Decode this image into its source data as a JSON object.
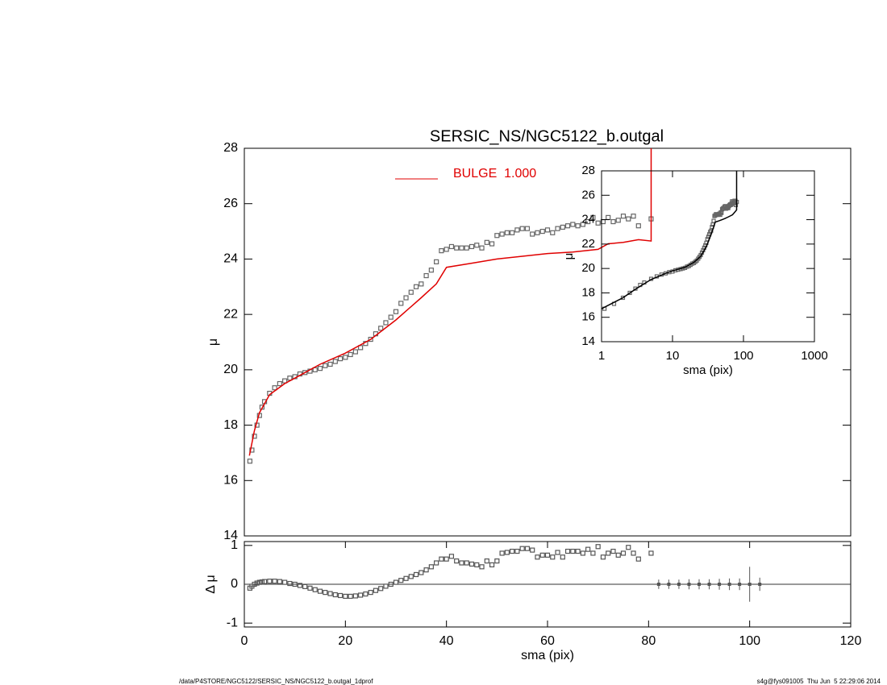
{
  "chart_data": [
    {
      "type": "scatter",
      "title": "SERSIC_NS/NGC5122_b.outgal",
      "ylabel": "μ",
      "xlim": [
        0,
        120
      ],
      "ylim": [
        14,
        28
      ],
      "yticks": [
        14,
        16,
        18,
        20,
        22,
        24,
        26,
        28
      ],
      "series": [
        {
          "type": "scatter",
          "color": "#666666",
          "x": [
            1.1,
            1.5,
            2,
            2.5,
            3,
            3.5,
            4,
            5,
            6,
            7,
            8,
            9,
            10,
            11,
            12,
            13,
            14,
            15,
            16,
            17,
            18,
            19,
            20,
            21,
            22,
            23,
            24,
            25,
            26,
            27,
            28,
            29,
            30,
            31,
            32,
            33,
            34,
            35,
            36,
            37,
            38,
            39,
            40,
            41,
            42,
            43,
            44,
            45,
            46,
            47,
            48,
            49,
            50,
            51,
            52,
            53,
            54,
            55,
            56,
            57,
            58,
            59,
            60,
            61,
            62,
            63,
            64,
            65,
            66,
            67,
            68,
            69,
            70,
            71,
            72,
            73,
            74,
            75,
            76,
            77,
            78,
            80.5
          ],
          "values": [
            16.7,
            17.1,
            17.6,
            18.0,
            18.35,
            18.65,
            18.85,
            19.15,
            19.35,
            19.5,
            19.6,
            19.7,
            19.75,
            19.85,
            19.9,
            19.95,
            20.0,
            20.05,
            20.15,
            20.2,
            20.3,
            20.4,
            20.45,
            20.55,
            20.65,
            20.8,
            20.95,
            21.1,
            21.3,
            21.5,
            21.7,
            21.9,
            22.1,
            22.4,
            22.6,
            22.8,
            23.0,
            23.1,
            23.4,
            23.6,
            23.9,
            24.3,
            24.35,
            24.45,
            24.4,
            24.4,
            24.4,
            24.45,
            24.5,
            24.4,
            24.6,
            24.55,
            24.85,
            24.9,
            24.95,
            24.95,
            25.05,
            25.1,
            25.1,
            24.9,
            24.95,
            25.0,
            25.05,
            24.95,
            25.1,
            25.15,
            25.2,
            25.25,
            25.2,
            25.25,
            25.35,
            25.5,
            25.3,
            25.35,
            25.5,
            25.35,
            25.4,
            25.55,
            25.45,
            25.55,
            25.2,
            25.45
          ]
        },
        {
          "type": "line",
          "name": "BULGE  1.000",
          "color": "#e00000",
          "x": [
            1,
            2,
            3,
            5,
            8,
            10,
            15,
            20,
            25,
            30,
            35,
            38,
            40,
            45,
            50,
            55,
            60,
            65,
            70,
            72,
            75,
            78,
            80.5,
            80.5
          ],
          "values": [
            16.9,
            17.8,
            18.45,
            19.1,
            19.5,
            19.7,
            20.2,
            20.6,
            21.1,
            21.8,
            22.6,
            23.1,
            23.7,
            23.85,
            24.0,
            24.1,
            24.2,
            24.25,
            24.35,
            24.55,
            24.6,
            24.7,
            24.65,
            28
          ]
        }
      ]
    },
    {
      "type": "scatter",
      "xlog": true,
      "xlabel": "sma (pix)",
      "ylabel": "μ",
      "xlim": [
        1,
        1000
      ],
      "ylim": [
        14,
        28
      ],
      "xticks": [
        1,
        10,
        100,
        1000
      ],
      "yticks": [
        14,
        16,
        18,
        20,
        22,
        24,
        26,
        28
      ],
      "series": [
        {
          "type": "scatter",
          "color": "#666666",
          "x": [
            1.1,
            1.5,
            2,
            2.5,
            3,
            3.5,
            4,
            5,
            6,
            7,
            8,
            9,
            10,
            11,
            12,
            13,
            14,
            15,
            16,
            17,
            18,
            19,
            20,
            21,
            22,
            23,
            24,
            25,
            26,
            27,
            28,
            29,
            30,
            31,
            32,
            33,
            34,
            35,
            36,
            37,
            38,
            39,
            40,
            41,
            42,
            43,
            44,
            45,
            46,
            47,
            48,
            49,
            50,
            51,
            52,
            53,
            54,
            55,
            56,
            57,
            58,
            59,
            60,
            61,
            62,
            63,
            64,
            65,
            66,
            67,
            68,
            69,
            70,
            71,
            72,
            73,
            74,
            75,
            76,
            77,
            78,
            80.5
          ],
          "values": [
            16.7,
            17.1,
            17.6,
            18.0,
            18.35,
            18.65,
            18.85,
            19.15,
            19.35,
            19.5,
            19.6,
            19.7,
            19.75,
            19.85,
            19.9,
            19.95,
            20.0,
            20.05,
            20.15,
            20.2,
            20.3,
            20.4,
            20.45,
            20.55,
            20.65,
            20.8,
            20.95,
            21.1,
            21.3,
            21.5,
            21.7,
            21.9,
            22.1,
            22.4,
            22.6,
            22.8,
            23.0,
            23.1,
            23.4,
            23.6,
            23.9,
            24.3,
            24.35,
            24.45,
            24.4,
            24.4,
            24.4,
            24.45,
            24.5,
            24.4,
            24.6,
            24.55,
            24.85,
            24.9,
            24.95,
            24.95,
            25.05,
            25.1,
            25.1,
            24.9,
            24.95,
            25.0,
            25.05,
            24.95,
            25.1,
            25.15,
            25.2,
            25.25,
            25.2,
            25.25,
            25.35,
            25.5,
            25.3,
            25.35,
            25.5,
            25.35,
            25.4,
            25.55,
            25.45,
            25.55,
            25.2,
            25.45
          ]
        },
        {
          "type": "line",
          "color": "#000000",
          "x": [
            1,
            2,
            3,
            5,
            8,
            10,
            15,
            20,
            25,
            30,
            35,
            38,
            40,
            45,
            50,
            55,
            60,
            65,
            70,
            75,
            80,
            80
          ],
          "values": [
            16.7,
            17.6,
            18.3,
            19.1,
            19.6,
            19.8,
            20.1,
            20.5,
            21.0,
            21.8,
            22.8,
            23.4,
            23.8,
            23.9,
            24.0,
            24.1,
            24.2,
            24.3,
            24.4,
            24.6,
            24.8,
            28
          ]
        }
      ]
    },
    {
      "type": "scatter",
      "xlabel": "sma (pix)",
      "ylabel": "Δ μ",
      "reference_line": 0,
      "xlim": [
        0,
        120
      ],
      "ylim": [
        -1.1,
        1.1
      ],
      "xticks": [
        0,
        20,
        40,
        60,
        80,
        100,
        120
      ],
      "yticks": [
        -1,
        0,
        1
      ],
      "series": [
        {
          "type": "scatter",
          "color": "#555555",
          "x": [
            1.1,
            1.5,
            2,
            2.5,
            3,
            3.5,
            4,
            5,
            6,
            7,
            8,
            9,
            10,
            11,
            12,
            13,
            14,
            15,
            16,
            17,
            18,
            19,
            20,
            21,
            22,
            23,
            24,
            25,
            26,
            27,
            28,
            29,
            30,
            31,
            32,
            33,
            34,
            35,
            36,
            37,
            38,
            39,
            40,
            41,
            42,
            43,
            44,
            45,
            46,
            47,
            48,
            49,
            50,
            51,
            52,
            53,
            54,
            55,
            56,
            57,
            58,
            59,
            60,
            61,
            62,
            63,
            64,
            65,
            66,
            67,
            68,
            69,
            70,
            71,
            72,
            73,
            74,
            75,
            76,
            77,
            78,
            80.5
          ],
          "values": [
            -0.1,
            -0.05,
            0.0,
            0.03,
            0.05,
            0.06,
            0.07,
            0.08,
            0.08,
            0.07,
            0.05,
            0.02,
            0.0,
            -0.03,
            -0.06,
            -0.1,
            -0.14,
            -0.18,
            -0.21,
            -0.24,
            -0.27,
            -0.29,
            -0.31,
            -0.31,
            -0.3,
            -0.28,
            -0.25,
            -0.21,
            -0.16,
            -0.11,
            -0.05,
            0.0,
            0.05,
            0.1,
            0.15,
            0.2,
            0.25,
            0.3,
            0.37,
            0.45,
            0.55,
            0.65,
            0.65,
            0.72,
            0.6,
            0.55,
            0.55,
            0.52,
            0.5,
            0.45,
            0.6,
            0.5,
            0.6,
            0.8,
            0.82,
            0.85,
            0.85,
            0.92,
            0.92,
            0.88,
            0.7,
            0.75,
            0.75,
            0.7,
            0.82,
            0.7,
            0.85,
            0.85,
            0.85,
            0.8,
            0.9,
            0.8,
            0.97,
            0.7,
            0.8,
            0.85,
            0.75,
            0.8,
            0.95,
            0.8,
            0.65,
            0.8
          ]
        },
        {
          "type": "errorbar",
          "color": "#555555",
          "x": [
            82,
            84,
            86,
            88,
            90,
            92,
            94,
            96,
            98,
            100,
            102
          ],
          "values": [
            0,
            0,
            0,
            0,
            0,
            0,
            0,
            0,
            0,
            0,
            0
          ],
          "errors": [
            0.12,
            0.12,
            0.12,
            0.13,
            0.13,
            0.13,
            0.14,
            0.15,
            0.15,
            0.45,
            0.17
          ]
        }
      ]
    }
  ],
  "footer": {
    "left": "/data/P4STORE/NGC5122/SERSIC_NS/NGC5122_b.outgal_1dprof",
    "right": "s4g@fys091005  Thu Jun  5 22:29:06 2014"
  }
}
